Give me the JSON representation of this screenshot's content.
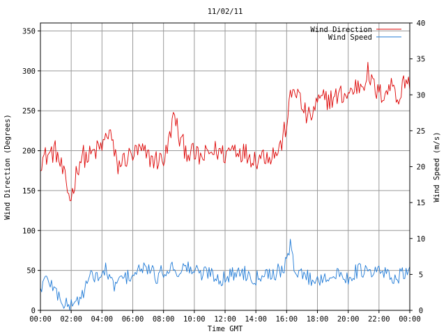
{
  "chart_data": {
    "type": "line",
    "title": "11/02/11",
    "xlabel": "Time GMT",
    "ylabel_left": "Wind Direction (Degrees)",
    "ylabel_right": "Wind Speed (m/s)",
    "x_ticks": [
      "00:00",
      "02:00",
      "04:00",
      "06:00",
      "08:00",
      "10:00",
      "12:00",
      "14:00",
      "16:00",
      "18:00",
      "20:00",
      "22:00",
      "00:00"
    ],
    "x_range_hours": [
      0,
      24
    ],
    "y_left_ticks": [
      "0",
      "50",
      "100",
      "150",
      "200",
      "250",
      "300",
      "350"
    ],
    "y_left_range": [
      0,
      360
    ],
    "y_right_ticks": [
      "0",
      "5",
      "10",
      "15",
      "20",
      "25",
      "30",
      "35",
      "40"
    ],
    "y_right_range": [
      0,
      40
    ],
    "grid": true,
    "legend_position": "top-right",
    "series": [
      {
        "name": "Wind Direction",
        "axis": "left",
        "color": "#dd0000",
        "hours": [
          0,
          0.5,
          1,
          1.25,
          1.5,
          1.75,
          2,
          2.25,
          2.5,
          2.75,
          3,
          3.5,
          4,
          4.25,
          4.5,
          4.75,
          5,
          5.5,
          6,
          6.5,
          7,
          7.5,
          8,
          8.25,
          8.5,
          8.75,
          9,
          9.5,
          10,
          10.5,
          11,
          11.5,
          12,
          12.5,
          13,
          13.5,
          14,
          14.5,
          15,
          15.5,
          15.75,
          16,
          16.25,
          16.5,
          16.75,
          17,
          17.25,
          17.5,
          17.75,
          18,
          18.5,
          19,
          19.5,
          20,
          20.5,
          21,
          21.25,
          21.5,
          22,
          22.5,
          23,
          23.25,
          23.5,
          23.75,
          24
        ],
        "values": [
          188,
          195,
          200,
          185,
          170,
          150,
          140,
          165,
          185,
          195,
          190,
          198,
          205,
          215,
          228,
          200,
          180,
          190,
          195,
          200,
          192,
          188,
          190,
          200,
          230,
          245,
          215,
          200,
          195,
          190,
          198,
          200,
          195,
          205,
          200,
          195,
          190,
          195,
          195,
          200,
          215,
          235,
          265,
          280,
          270,
          255,
          245,
          240,
          250,
          260,
          265,
          265,
          270,
          270,
          280,
          285,
          300,
          285,
          270,
          275,
          285,
          260,
          280,
          290,
          285
        ]
      },
      {
        "name": "Wind Speed",
        "axis": "right",
        "color": "#1f7ad6",
        "hours": [
          0,
          0.25,
          0.5,
          0.75,
          1,
          1.25,
          1.5,
          1.75,
          2,
          2.25,
          2.5,
          2.75,
          3,
          3.25,
          3.5,
          4,
          4.25,
          4.5,
          4.75,
          5,
          5.5,
          6,
          6.5,
          7,
          7.5,
          8,
          8.5,
          9,
          9.5,
          10,
          10.5,
          11,
          11.5,
          12,
          12.5,
          13,
          13.5,
          14,
          14.5,
          15,
          15.5,
          16,
          16.25,
          16.5,
          16.75,
          17,
          17.5,
          18,
          18.5,
          19,
          19.5,
          20,
          20.5,
          21,
          21.5,
          22,
          22.5,
          23,
          23.5,
          24
        ],
        "values": [
          3,
          4,
          4.5,
          3.5,
          2.5,
          2,
          1,
          0.5,
          0.8,
          1.5,
          1.2,
          2.5,
          3.5,
          4.5,
          5,
          4.5,
          6,
          4,
          3.5,
          4,
          4.5,
          5,
          5.5,
          6,
          4.5,
          5.5,
          6,
          5.5,
          6,
          5.5,
          5,
          5.5,
          4.5,
          4.5,
          5,
          5.5,
          5,
          4.5,
          5.5,
          5,
          5.5,
          6.5,
          9,
          6,
          5.5,
          5,
          4.5,
          4,
          5,
          4.5,
          5,
          4.5,
          5.5,
          5.5,
          5,
          5.5,
          5,
          4.5,
          5,
          5
        ]
      }
    ]
  }
}
